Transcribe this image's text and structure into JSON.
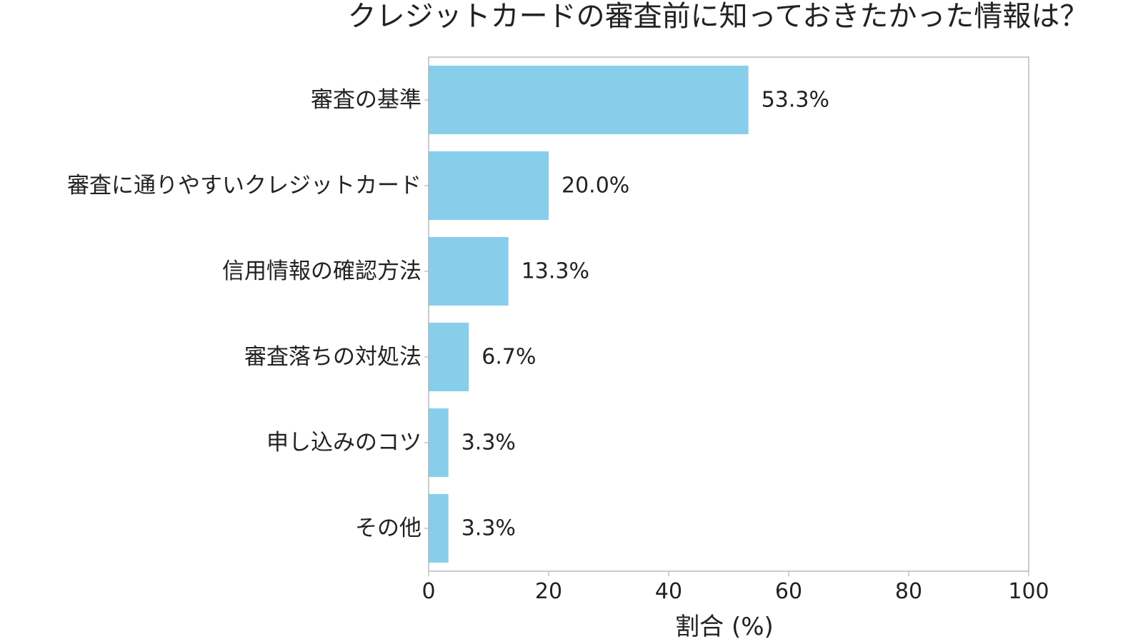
{
  "chart_data": {
    "type": "bar",
    "orientation": "horizontal",
    "title": "クレジットカードの審査前に知っておきたかった情報は？",
    "xlabel": "割合 (%)",
    "ylabel": "",
    "categories": [
      "審査の基準",
      "審査に通りやすいクレジットカード",
      "信用情報の確認方法",
      "審査落ちの対処法",
      "申し込みのコツ",
      "その他"
    ],
    "values": [
      53.3,
      20.0,
      13.3,
      6.7,
      3.3,
      3.3
    ],
    "value_labels": [
      "53.3%",
      "20.0%",
      "13.3%",
      "6.7%",
      "3.3%",
      "3.3%"
    ],
    "xlim": [
      0,
      100
    ],
    "x_ticks": [
      0,
      20,
      40,
      60,
      80,
      100
    ],
    "grid": false,
    "legend": "none",
    "colors": {
      "bar": "#87CEEB",
      "frame": "#aaaaaa",
      "text": "#222222"
    }
  }
}
